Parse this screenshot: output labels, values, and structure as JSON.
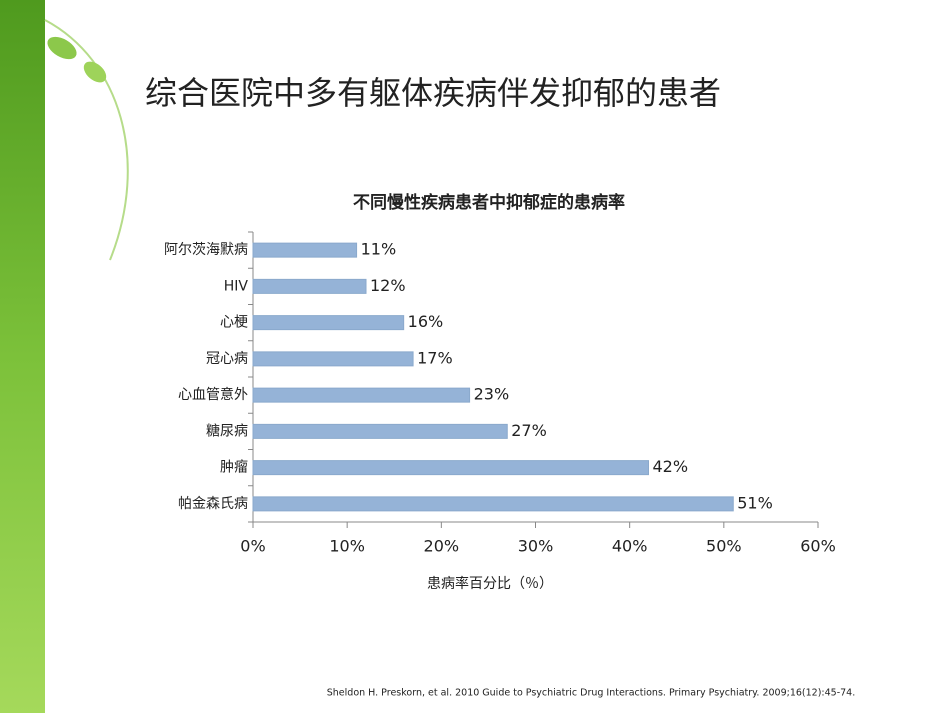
{
  "slide_title": "综合医院中多有躯体疾病伴发抑郁的患者",
  "citation": "Sheldon H. Preskorn, et al. 2010 Guide to Psychiatric Drug Interactions. Primary Psychiatry. 2009;16(12):45-74.",
  "chart_data": {
    "type": "bar",
    "orientation": "horizontal",
    "title": "不同慢性疾病患者中抑郁症的患病率",
    "x_label": "患病率百分比（％）",
    "categories": [
      "阿尔茨海默病",
      "HIV",
      "心梗",
      "冠心病",
      "心血管意外",
      "糖尿病",
      "肿瘤",
      "帕金森氏病"
    ],
    "values": [
      11,
      12,
      16,
      17,
      23,
      27,
      42,
      51
    ],
    "value_labels": [
      "11%",
      "12%",
      "16%",
      "17%",
      "23%",
      "27%",
      "42%",
      "51%"
    ],
    "color": "#95b3d7",
    "xlim": [
      0,
      60
    ],
    "xticks": [
      {
        "value": 0,
        "label": "0%"
      },
      {
        "value": 10,
        "label": "10%"
      },
      {
        "value": 20,
        "label": "20%"
      },
      {
        "value": 30,
        "label": "30%"
      },
      {
        "value": 40,
        "label": "40%"
      },
      {
        "value": 50,
        "label": "50%"
      },
      {
        "value": 60,
        "label": "60%"
      }
    ],
    "grid": false
  }
}
